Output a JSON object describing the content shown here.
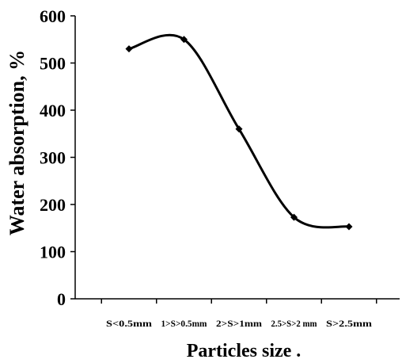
{
  "chart_data": {
    "type": "line",
    "title": "",
    "xlabel": "Particles size .",
    "ylabel": "Water absorption, %",
    "categories": [
      "S<0.5mm",
      "1>S>0.5mm",
      "2>S>1mm",
      "2.5>S>2 mm",
      "S>2.5mm"
    ],
    "series": [
      {
        "values": [
          530,
          550,
          360,
          173,
          153
        ]
      }
    ],
    "ylim": [
      0,
      600
    ],
    "yticks": [
      "0",
      "100",
      "200",
      "300",
      "400",
      "500",
      "600"
    ],
    "grid": false,
    "line_color": "#000000",
    "smooth": true,
    "marker": "diamond"
  }
}
